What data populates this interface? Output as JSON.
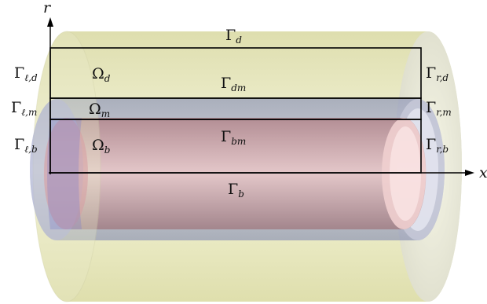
{
  "axes": {
    "x_label": "x",
    "r_label": "r"
  },
  "labels": {
    "gamma_d": {
      "main": "Γ",
      "sub": "d"
    },
    "gamma_dm": {
      "main": "Γ",
      "sub": "dm"
    },
    "gamma_bm": {
      "main": "Γ",
      "sub": "bm"
    },
    "gamma_b": {
      "main": "Γ",
      "sub": "b"
    },
    "gamma_ld": {
      "main": "Γ",
      "sub": "ℓ,d"
    },
    "gamma_lm": {
      "main": "Γ",
      "sub": "ℓ,m"
    },
    "gamma_lb": {
      "main": "Γ",
      "sub": "ℓ,b"
    },
    "gamma_rd": {
      "main": "Γ",
      "sub": "r,d"
    },
    "gamma_rm": {
      "main": "Γ",
      "sub": "r,m"
    },
    "gamma_rb": {
      "main": "Γ",
      "sub": "r,b"
    },
    "omega_d": {
      "main": "Ω",
      "sub": "d"
    },
    "omega_m": {
      "main": "Ω",
      "sub": "m"
    },
    "omega_b": {
      "main": "Ω",
      "sub": "b"
    }
  },
  "colors": {
    "outer_layer": "#e8e8b8",
    "middle_layer": "#b9bdd8",
    "inner_layer": "#cf9a9a",
    "rect_stroke": "#000000"
  }
}
